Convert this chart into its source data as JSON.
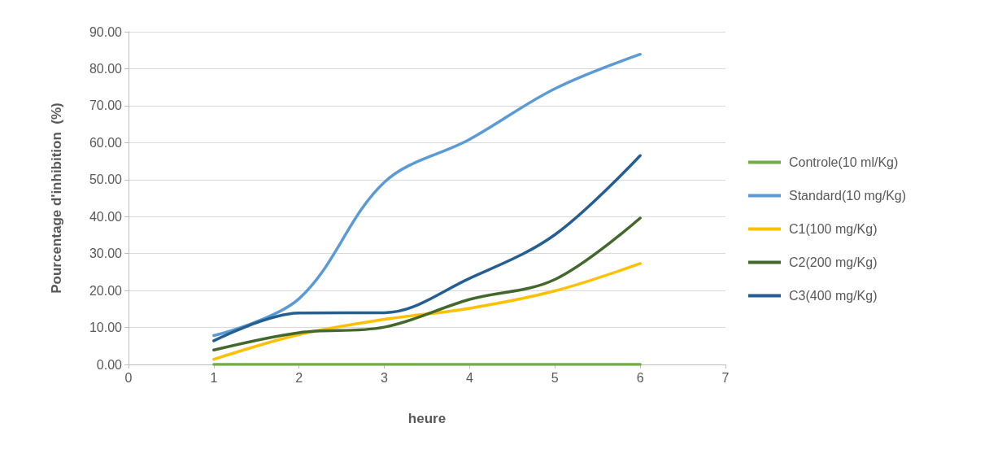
{
  "chart_data": {
    "type": "line",
    "xlabel": "heure",
    "ylabel": "Pourcentage d'inhibition  (%)",
    "x": [
      1,
      2,
      3,
      4,
      5,
      6
    ],
    "series": [
      {
        "name": "Controle(10 ml/Kg)",
        "color": "#70ad47",
        "values": [
          0,
          0,
          0,
          0,
          0,
          0
        ]
      },
      {
        "name": "Standard(10 mg/Kg)",
        "color": "#5b9bd5",
        "values": [
          7.8,
          17.8,
          49.3,
          60.9,
          74.6,
          83.9
        ]
      },
      {
        "name": "C1(100 mg/Kg)",
        "color": "#ffc000",
        "values": [
          1.4,
          8.1,
          12.2,
          15.2,
          19.9,
          27.3
        ]
      },
      {
        "name": "C2(200 mg/Kg)",
        "color": "#43682b",
        "values": [
          3.9,
          8.6,
          10.1,
          17.6,
          23.0,
          39.6
        ]
      },
      {
        "name": "C3(400 mg/Kg)",
        "color": "#255e91",
        "values": [
          6.4,
          13.9,
          14.0,
          23.3,
          35.1,
          56.5
        ]
      }
    ],
    "xlim": [
      0,
      7
    ],
    "xticks": [
      0,
      1,
      2,
      3,
      4,
      5,
      6,
      7
    ],
    "ylim": [
      0,
      90
    ],
    "yticks": [
      {
        "value": 0,
        "label": "0.00"
      },
      {
        "value": 10,
        "label": "10.00"
      },
      {
        "value": 20,
        "label": "20.00"
      },
      {
        "value": 30,
        "label": "30.00"
      },
      {
        "value": 40,
        "label": "40.00"
      },
      {
        "value": 50,
        "label": "50.00"
      },
      {
        "value": 60,
        "label": "60.00"
      },
      {
        "value": 70,
        "label": "70.00"
      },
      {
        "value": 80,
        "label": "80.00"
      },
      {
        "value": 90,
        "label": "90.00"
      }
    ],
    "grid": "y",
    "legend": "right",
    "marker": "none",
    "line_style": "solid"
  }
}
